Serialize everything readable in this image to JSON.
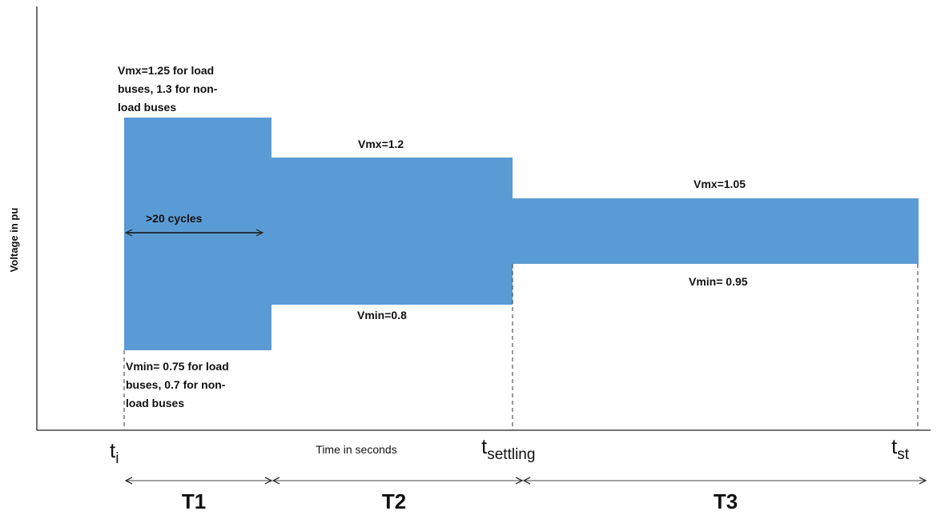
{
  "y_axis_label": "Voltage in pu",
  "x_axis_label": "Time in seconds",
  "colors": {
    "band": "#5b9bd5",
    "line": "#222222",
    "arrow": "#444444"
  },
  "band_labels": {
    "t1_top": [
      "Vmx=1.25 for load",
      "buses, 1.3 for non-",
      "load buses"
    ],
    "t1_bottom": [
      "Vmin= 0.75 for load",
      "buses, 0.7 for non-",
      "load buses"
    ],
    "t2_top": "Vmx=1.2",
    "t2_bottom": "Vmin=0.8",
    "t3_top": "Vmx=1.05",
    "t3_bottom": "Vmin= 0.95",
    "cycles": ">20 cycles"
  },
  "time_marks": {
    "ti": {
      "main": "t",
      "sub": "i"
    },
    "tsettling": {
      "main": "t",
      "sub": "settling"
    },
    "tst": {
      "main": "t",
      "sub": "st"
    }
  },
  "periods": [
    "T1",
    "T2",
    "T3"
  ]
}
